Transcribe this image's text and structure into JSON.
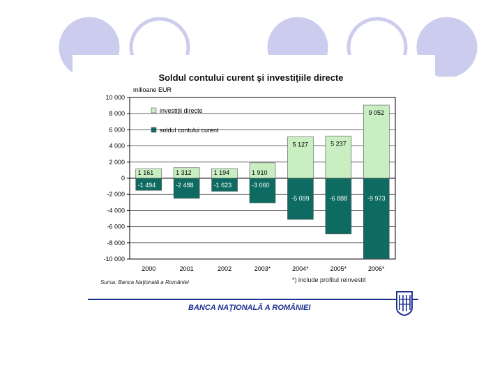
{
  "chart_data": {
    "type": "bar",
    "title": "Soldul contului curent şi investiţiile directe",
    "unit_label": "milioane EUR",
    "categories": [
      "2000",
      "2001",
      "2002",
      "2003*",
      "2004*",
      "2005*",
      "2006*"
    ],
    "series": [
      {
        "name": "investiţii directe",
        "values": [
          1161,
          1312,
          1194,
          1910,
          5127,
          5237,
          9052
        ],
        "labels": [
          "1 161",
          "1 312",
          "1 194",
          "1 910",
          "5 127",
          "5 237",
          "9 052"
        ],
        "color": "#c9eec2"
      },
      {
        "name": "soldul contului curent",
        "values": [
          -1494,
          -2488,
          -1623,
          -3060,
          -5099,
          -6888,
          -9973
        ],
        "labels": [
          "-1 494",
          "-2 488",
          "-1 623",
          "-3 060",
          "-5 099",
          "-6 888",
          "-9 973"
        ],
        "color": "#0e6b62"
      }
    ],
    "ylim": [
      -10000,
      10000
    ],
    "yticks": [
      10000,
      8000,
      6000,
      4000,
      2000,
      0,
      -2000,
      -4000,
      -6000,
      -8000,
      -10000
    ],
    "ytick_labels": [
      "10 000",
      "8 000",
      "6 000",
      "4 000",
      "2 000",
      "0",
      "-2 000",
      "-4 000",
      "-6 000",
      "-8 000",
      "-10 000"
    ],
    "grid": true,
    "legend_position": "top-left",
    "source": "Sursa: Banca Naţională a României",
    "footnote": "*) include profitul reinvestit"
  },
  "footer": {
    "bank_name": "BANCA NAŢIONALĂ A ROMÂNIEI",
    "logo_icon": "bnr-logo-icon"
  },
  "decoration": {
    "circle_color": "#ccccee"
  }
}
